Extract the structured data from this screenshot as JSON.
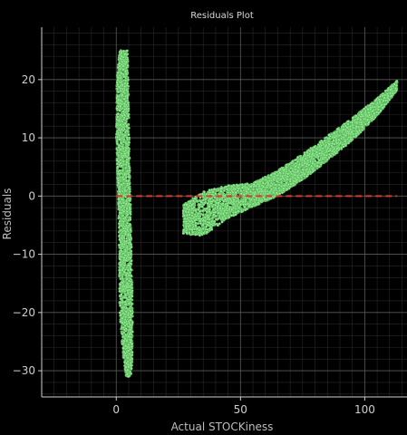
{
  "chart_data": {
    "type": "scatter",
    "title": "Residuals Plot",
    "xlabel": "Actual STOCKiness",
    "ylabel": "Residuals",
    "xlim": [
      -30,
      117
    ],
    "ylim": [
      -34.5,
      29
    ],
    "x_ticks": [
      0,
      50,
      100
    ],
    "y_ticks": [
      -30,
      -20,
      -10,
      0,
      10,
      20
    ],
    "grid": true,
    "point_color": "#90ee90",
    "point_edge_color": "#3c8c3c",
    "reference_line": {
      "y": 0,
      "x_range": [
        0,
        113
      ],
      "color": "#d93a2b",
      "style": "dashed"
    },
    "clusters": [
      {
        "name": "",
        "x_range": [
          0,
          6
        ],
        "y_range": [
          -31,
          25
        ],
        "profile": [
          {
            "y": 25,
            "x_center": 3.0,
            "half_width": 1.6
          },
          {
            "y": 20,
            "x_center": 2.5,
            "half_width": 2.3
          },
          {
            "y": 10,
            "x_center": 2.6,
            "half_width": 2.6
          },
          {
            "y": 0,
            "x_center": 3.2,
            "half_width": 2.4
          },
          {
            "y": -10,
            "x_center": 3.7,
            "half_width": 2.5
          },
          {
            "y": -20,
            "x_center": 4.0,
            "half_width": 2.6
          },
          {
            "y": -27,
            "x_center": 4.6,
            "half_width": 1.9
          },
          {
            "y": -31,
            "x_center": 5.0,
            "half_width": 1.0
          }
        ]
      },
      {
        "name": "",
        "x_range": [
          27,
          113
        ],
        "y_range": [
          -6.5,
          19.5
        ],
        "profile": [
          {
            "x": 27,
            "y_center": -4.0,
            "half_height": 2.5
          },
          {
            "x": 35,
            "y_center": -3.0,
            "half_height": 3.8
          },
          {
            "x": 45,
            "y_center": -1.0,
            "half_height": 2.8
          },
          {
            "x": 55,
            "y_center": 0.2,
            "half_height": 2.0
          },
          {
            "x": 65,
            "y_center": 2.2,
            "half_height": 2.2
          },
          {
            "x": 75,
            "y_center": 5.0,
            "half_height": 2.2
          },
          {
            "x": 85,
            "y_center": 8.2,
            "half_height": 2.1
          },
          {
            "x": 95,
            "y_center": 11.5,
            "half_height": 1.9
          },
          {
            "x": 105,
            "y_center": 15.3,
            "half_height": 1.5
          },
          {
            "x": 113,
            "y_center": 19.0,
            "half_height": 0.8
          }
        ]
      }
    ]
  }
}
